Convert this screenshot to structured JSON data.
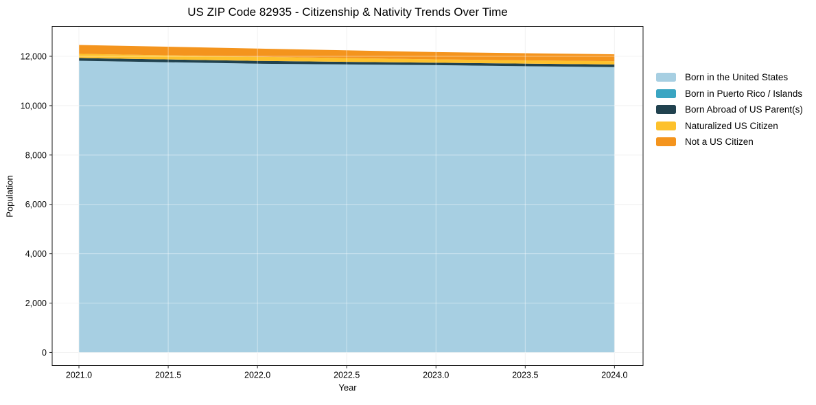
{
  "figure": {
    "background": "#ffffff",
    "text_color": "#000000",
    "spine_color": "#1a1a1a",
    "grid_color_under": "#e9e9e9",
    "grid_color_over": "rgba(255,255,255,0.45)",
    "tick_color": "#262626"
  },
  "chart_data": {
    "type": "area",
    "stacked": true,
    "title": "US ZIP Code 82935 - Citizenship & Nativity Trends Over Time",
    "xlabel": "Year",
    "ylabel": "Population",
    "x": [
      2021,
      2022,
      2023,
      2024
    ],
    "series": [
      {
        "name": "Born in the United States",
        "color": "#a7cfe2",
        "values": [
          11820,
          11700,
          11640,
          11560
        ]
      },
      {
        "name": "Born in Puerto Rico / Islands",
        "color": "#3aa5c2",
        "values": [
          0,
          0,
          0,
          0
        ]
      },
      {
        "name": "Born Abroad of US Parent(s)",
        "color": "#21424f",
        "values": [
          110,
          115,
          100,
          110
        ]
      },
      {
        "name": "Naturalized US Citizen",
        "color": "#fdc12c",
        "values": [
          170,
          165,
          135,
          130
        ]
      },
      {
        "name": "Not a US Citizen",
        "color": "#f4941d",
        "values": [
          360,
          335,
          295,
          280
        ]
      }
    ],
    "xlim": [
      2020.85,
      2024.16
    ],
    "ylim": [
      -530,
      13210
    ],
    "xtick_values": [
      2021,
      2021.5,
      2022,
      2022.5,
      2023,
      2023.5,
      2024
    ],
    "xtick_labels": [
      "2021.0",
      "2021.5",
      "2022.0",
      "2022.5",
      "2023.0",
      "2023.5",
      "2024.0"
    ],
    "ytick_values": [
      0,
      2000,
      4000,
      6000,
      8000,
      10000,
      12000
    ],
    "ytick_labels": [
      "0",
      "2,000",
      "4,000",
      "6,000",
      "8,000",
      "10,000",
      "12,000"
    ],
    "grid": true,
    "legend_position": "right-outside"
  }
}
